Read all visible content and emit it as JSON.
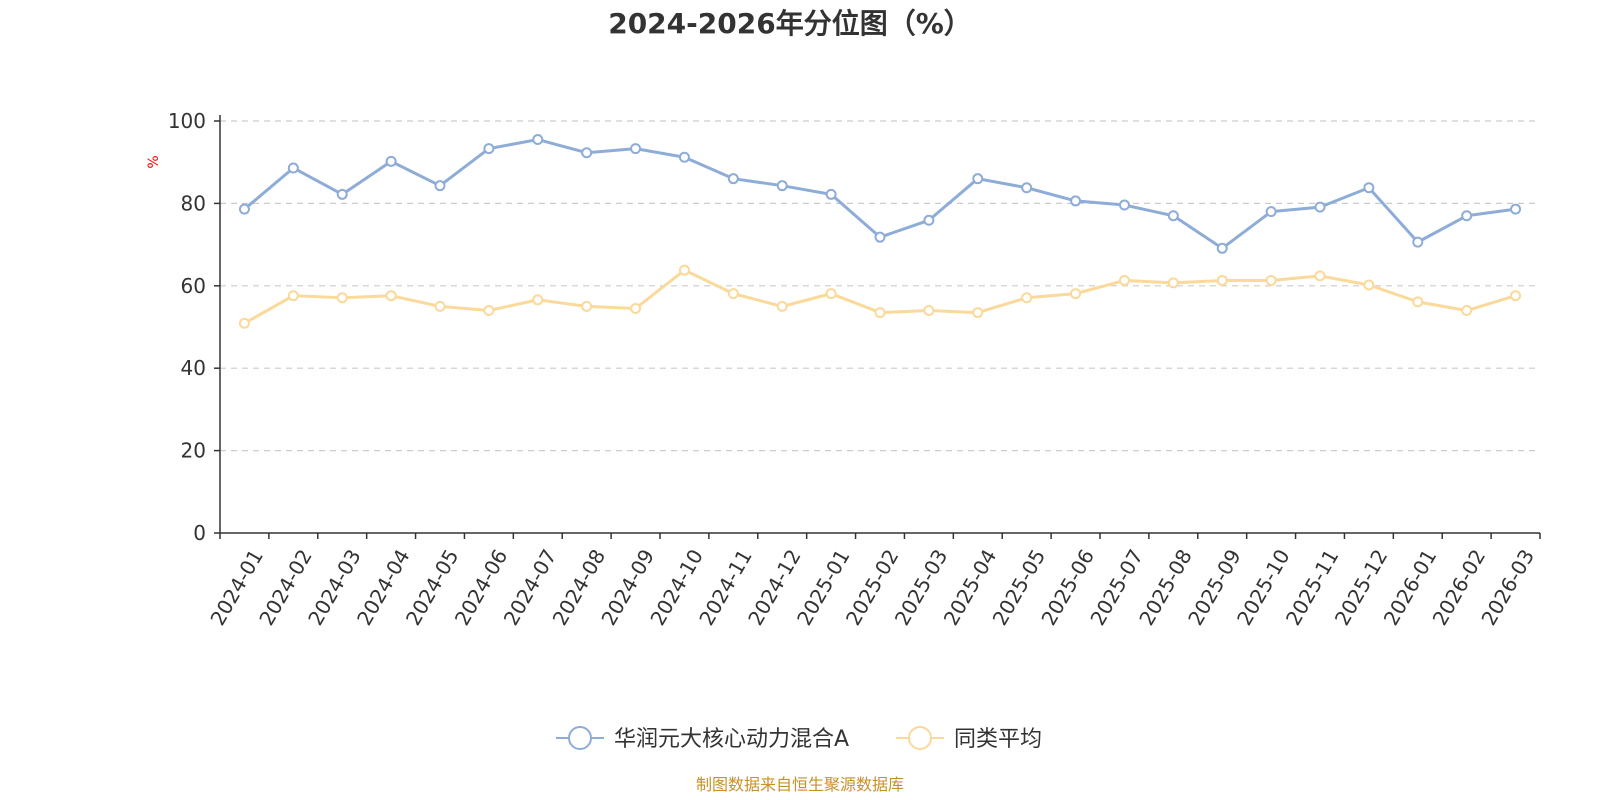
{
  "chart_data": {
    "type": "line",
    "title": "2024-2026年分位图（%）",
    "ylabel": "%",
    "xlabel": "",
    "ylim": [
      0,
      100
    ],
    "yticks": [
      "0",
      "20",
      "40",
      "60",
      "80",
      "100"
    ],
    "grid": true,
    "legend_position": "bottom",
    "categories": [
      "2024-01",
      "2024-02",
      "2024-03",
      "2024-04",
      "2024-05",
      "2024-06",
      "2024-07",
      "2024-08",
      "2024-09",
      "2024-10",
      "2024-11",
      "2024-12",
      "2025-01",
      "2025-02",
      "2025-03",
      "2025-04",
      "2025-05",
      "2025-06",
      "2025-07",
      "2025-08",
      "2025-09",
      "2025-10",
      "2025-11",
      "2025-12",
      "2026-01",
      "2026-02",
      "2026-03"
    ],
    "series": [
      {
        "name": "华润元大核心动力混合A",
        "color": "#8eacd8",
        "values": [
          78.6,
          88.6,
          82.2,
          90.2,
          84.3,
          93.3,
          95.5,
          92.3,
          93.3,
          91.2,
          86.0,
          84.3,
          82.2,
          71.8,
          75.9,
          86.0,
          83.8,
          80.6,
          79.6,
          77.0,
          69.1,
          78.0,
          79.1,
          83.8,
          70.6,
          77.0,
          78.6
        ]
      },
      {
        "name": "同类平均",
        "color": "#fad99a",
        "values": [
          50.9,
          57.6,
          57.1,
          57.6,
          55.0,
          54.0,
          56.6,
          55.0,
          54.5,
          63.8,
          58.1,
          55.0,
          58.1,
          53.5,
          54.0,
          53.5,
          57.1,
          58.1,
          61.3,
          60.7,
          61.3,
          61.3,
          62.4,
          60.2,
          56.1,
          54.0,
          57.6
        ]
      }
    ]
  },
  "source": "制图数据来自恒生聚源数据库"
}
